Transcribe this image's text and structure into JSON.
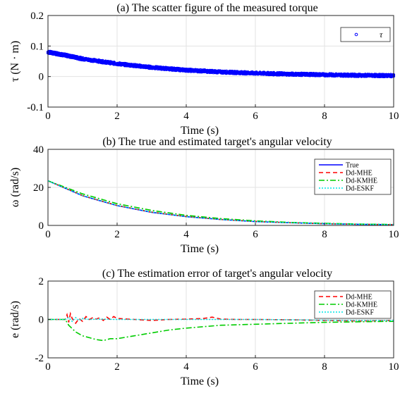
{
  "chart_data": [
    {
      "type": "scatter",
      "title": "(a) The scatter figure of the measured torque",
      "xlabel": "Time (s)",
      "ylabel": "τ (N · m)",
      "xlim": [
        0,
        10
      ],
      "ylim": [
        -0.1,
        0.2
      ],
      "xticks": [
        "0",
        "2",
        "4",
        "6",
        "8",
        "10"
      ],
      "yticks": [
        "-0.1",
        "0",
        "0.1",
        "0.2"
      ],
      "grid": true,
      "legend_position": "top-right",
      "series": [
        {
          "name": "τ",
          "color": "#0000ff",
          "x": [
            0,
            0.5,
            1,
            2,
            3,
            4,
            5,
            6,
            7,
            8,
            9,
            10
          ],
          "y": [
            0.08,
            0.07,
            0.058,
            0.042,
            0.03,
            0.021,
            0.015,
            0.011,
            0.008,
            0.006,
            0.004,
            0.003
          ]
        }
      ]
    },
    {
      "type": "line",
      "title": "(b) The true and estimated target's angular velocity",
      "xlabel": "Time (s)",
      "ylabel": "ω (rad/s)",
      "xlim": [
        0,
        10
      ],
      "ylim": [
        0,
        40
      ],
      "xticks": [
        "0",
        "2",
        "4",
        "6",
        "8",
        "10"
      ],
      "yticks": [
        "0",
        "20",
        "40"
      ],
      "grid": true,
      "legend_position": "top-right",
      "series": [
        {
          "name": "True",
          "color": "#0000ff",
          "dash": "solid",
          "x": [
            0,
            1,
            2,
            3,
            4,
            5,
            6,
            7,
            8,
            9,
            10
          ],
          "y": [
            23.5,
            15.6,
            10.4,
            6.9,
            4.6,
            3.1,
            2.0,
            1.4,
            0.9,
            0.6,
            0.4
          ]
        },
        {
          "name": "Dd-MHE",
          "color": "#ff0000",
          "dash": "dashed",
          "x": [
            0,
            1,
            2,
            3,
            4,
            5,
            6,
            7,
            8,
            9,
            10
          ],
          "y": [
            23.5,
            15.7,
            10.5,
            7.0,
            4.7,
            3.1,
            2.1,
            1.4,
            0.9,
            0.6,
            0.4
          ]
        },
        {
          "name": "Dd-KMHE",
          "color": "#00cc00",
          "dash": "dashdot",
          "x": [
            0,
            1,
            2,
            3,
            4,
            5,
            6,
            7,
            8,
            9,
            10
          ],
          "y": [
            23.5,
            16.6,
            11.4,
            7.9,
            5.3,
            3.6,
            2.4,
            1.6,
            1.1,
            0.7,
            0.5
          ]
        },
        {
          "name": "Dd-ESKF",
          "color": "#00e5e5",
          "dash": "dotted",
          "x": [
            0,
            1,
            2,
            3,
            4,
            5,
            6,
            7,
            8,
            9,
            10
          ],
          "y": [
            23.5,
            15.7,
            10.5,
            7.0,
            4.6,
            3.1,
            2.0,
            1.4,
            0.9,
            0.6,
            0.4
          ]
        }
      ]
    },
    {
      "type": "line",
      "title": "(c) The estimation error of target's angular velocity",
      "xlabel": "Time (s)",
      "ylabel": "e (rad/s)",
      "xlim": [
        0,
        10
      ],
      "ylim": [
        -2,
        2
      ],
      "xticks": [
        "0",
        "2",
        "4",
        "6",
        "8",
        "10"
      ],
      "yticks": [
        "-2",
        "0",
        "2"
      ],
      "grid": true,
      "legend_position": "top-right",
      "series": [
        {
          "name": "Dd-MHE",
          "color": "#ff0000",
          "dash": "dashed",
          "x": [
            0,
            0.5,
            0.55,
            0.6,
            0.65,
            0.7,
            0.8,
            0.9,
            1.0,
            1.1,
            1.2,
            1.3,
            1.4,
            1.5,
            1.6,
            1.7,
            1.8,
            1.9,
            2.0,
            2.5,
            3,
            3.5,
            4,
            4.5,
            4.75,
            5,
            5.5,
            6,
            7,
            8,
            9,
            10
          ],
          "y": [
            0,
            0,
            0.25,
            -0.15,
            0.3,
            0.05,
            -0.2,
            0.05,
            -0.1,
            0.15,
            0.0,
            0.1,
            0.02,
            0.1,
            -0.05,
            0.12,
            0.0,
            0.15,
            0.05,
            0.0,
            -0.05,
            0.0,
            0.02,
            0.05,
            0.12,
            0.02,
            0.0,
            0.0,
            -0.02,
            -0.05,
            -0.08,
            -0.05
          ]
        },
        {
          "name": "Dd-KMHE",
          "color": "#00cc00",
          "dash": "dashdot",
          "x": [
            0,
            0.5,
            0.6,
            0.8,
            1.0,
            1.2,
            1.4,
            1.6,
            1.8,
            2.0,
            2.5,
            3,
            3.5,
            4,
            5,
            6,
            7,
            8,
            9,
            10
          ],
          "y": [
            0,
            0,
            -0.3,
            -0.65,
            -0.85,
            -0.95,
            -1.05,
            -1.1,
            -1.0,
            -1.0,
            -0.85,
            -0.7,
            -0.55,
            -0.45,
            -0.3,
            -0.25,
            -0.2,
            -0.15,
            -0.12,
            -0.1
          ]
        },
        {
          "name": "Dd-ESKF",
          "color": "#00e5e5",
          "dash": "dotted",
          "x": [
            0,
            0.5,
            0.6,
            0.7,
            0.8,
            0.9,
            1.0,
            1.2,
            1.5,
            2.0,
            3,
            4,
            5,
            6,
            7,
            8,
            9,
            10
          ],
          "y": [
            0,
            0,
            0.1,
            -0.1,
            0.1,
            -0.05,
            0.05,
            0.0,
            0.02,
            0.0,
            0.0,
            0.0,
            0.0,
            0.0,
            -0.02,
            -0.04,
            -0.05,
            -0.05
          ]
        }
      ]
    }
  ]
}
